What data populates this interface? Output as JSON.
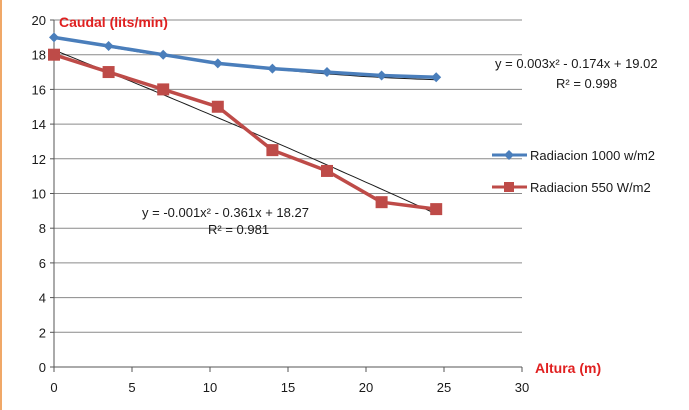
{
  "chart_data": {
    "type": "line",
    "title": "",
    "ylabel": "Caudal (lits/min)",
    "xlabel": "Altura (m)",
    "xlim": [
      0,
      30
    ],
    "ylim": [
      0,
      20
    ],
    "xticks": [
      0,
      5,
      10,
      15,
      20,
      25,
      30
    ],
    "yticks": [
      0,
      2,
      4,
      6,
      8,
      10,
      12,
      14,
      16,
      18,
      20
    ],
    "grid": "horizontal",
    "legend_position": "right",
    "series": [
      {
        "name": "Radiacion 1000 w/m2",
        "color": "#4a7ebb",
        "marker": "diamond",
        "x": [
          0,
          3.5,
          7,
          10.5,
          14,
          17.5,
          21,
          24.5
        ],
        "y": [
          19.0,
          18.5,
          18.0,
          17.5,
          17.2,
          17.0,
          16.8,
          16.7
        ]
      },
      {
        "name": "Radiacion 550 W/m2",
        "color": "#be4b48",
        "marker": "square",
        "x": [
          0,
          3.5,
          7,
          10.5,
          14,
          17.5,
          21,
          24.5
        ],
        "y": [
          18.0,
          17.0,
          16.0,
          15.0,
          12.5,
          11.3,
          9.5,
          9.1
        ]
      }
    ],
    "trendlines": [
      {
        "series": 0,
        "a": 0.003,
        "b": -0.174,
        "c": 19.02,
        "x_range": [
          0,
          24.5
        ]
      },
      {
        "series": 1,
        "a": -0.001,
        "b": -0.361,
        "c": 18.27,
        "x_range": [
          0,
          24.5
        ]
      }
    ],
    "annotations": [
      {
        "equation": "y = 0.003x² - 0.174x + 19.02",
        "r2": "R² = 0.998"
      },
      {
        "equation": "y = -0.001x² - 0.361x + 18.27",
        "r2": "R² = 0.981"
      }
    ]
  }
}
